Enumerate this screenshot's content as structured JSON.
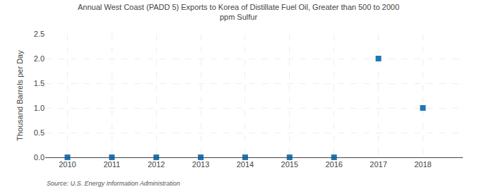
{
  "chart_data": {
    "type": "scatter",
    "title": "Annual West Coast (PADD 5) Exports to Korea of Distillate Fuel Oil, Greater than 500 to 2000\nppm Sulfur",
    "y_label": "Thousand Barrels per Day",
    "annotations": [
      "Source: U.S. Energy Information Administration"
    ],
    "x": [
      2010,
      2011,
      2012,
      2013,
      2014,
      2015,
      2016,
      2017,
      2018
    ],
    "values": [
      0.0,
      0.0,
      0.0,
      0.0,
      0.0,
      0.0,
      0.0,
      2.0,
      1.0
    ],
    "marker": "square",
    "xlim": [
      2009.5,
      2018.9
    ],
    "xticks": [
      2010,
      2011,
      2012,
      2013,
      2014,
      2015,
      2016,
      2017,
      2018
    ],
    "ylim": [
      0.0,
      2.5
    ],
    "yticks": [
      {
        "value": 0,
        "label": "0.0"
      },
      0.5,
      {
        "value": 1,
        "label": "1.0"
      },
      1.5,
      {
        "value": 2,
        "label": "2.0"
      },
      2.5
    ],
    "grid": true
  }
}
